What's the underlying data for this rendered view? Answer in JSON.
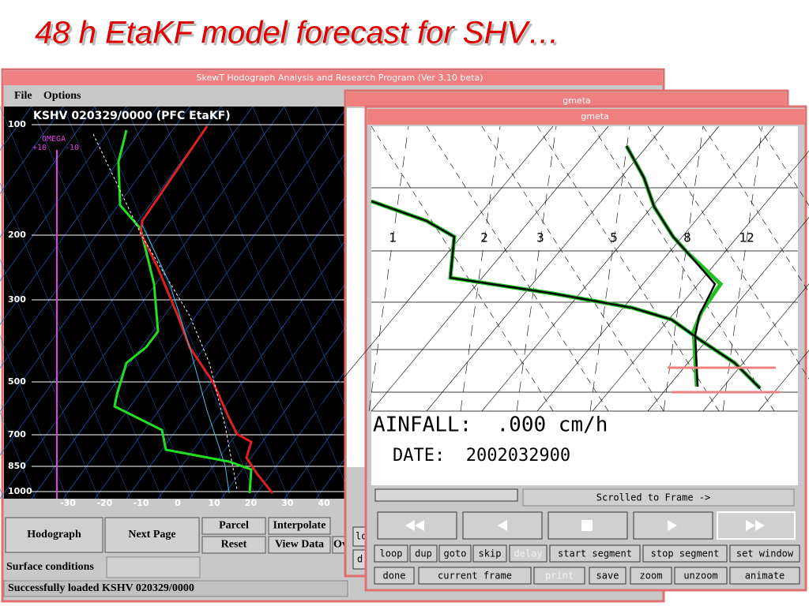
{
  "slide_title": "48 h EtaKF model forecast for SHV…",
  "skewt_window": {
    "title": "SkewT Hodograph Analysis and Research Program (Ver 3.10 beta)",
    "menu": [
      "File",
      "Options"
    ],
    "header": "KSHV  020329/0000  (PFC EtaKF)",
    "omega": {
      "label": "OMEGA",
      "left": "+10",
      "right": "-10"
    },
    "pressure_labels": [
      100,
      200,
      300,
      500,
      700,
      850,
      1000
    ],
    "temperature_labels": [
      -30,
      -20,
      -10,
      0,
      10,
      20,
      30,
      40
    ],
    "buttons": [
      "Hodograph",
      "Next Page",
      "Parcel",
      "Interpolate",
      "Reset",
      "View Data",
      "Ov"
    ],
    "surface_label": "Surface conditions",
    "status": "Successfully loaded  KSHV  020329/0000"
  },
  "gmeta_back": {
    "title": "gmeta",
    "buttons": [
      "lo",
      "d"
    ]
  },
  "gmeta_front": {
    "title": "gmeta",
    "mixing_ratio_labels": [
      1,
      2,
      3,
      5,
      8,
      12
    ],
    "rainfall": "AINFALL:  .000 cm/h",
    "date": "DATE:  2002032900",
    "scroll_label": "Scrolled to Frame ->",
    "buttons_row1": [
      "loop",
      "dup",
      "goto",
      "skip",
      "delay",
      "start segment",
      "stop segment",
      "set window"
    ],
    "buttons_row2": [
      "done",
      "current frame",
      "print",
      "save",
      "zoom",
      "unzoom",
      "animate"
    ]
  }
}
